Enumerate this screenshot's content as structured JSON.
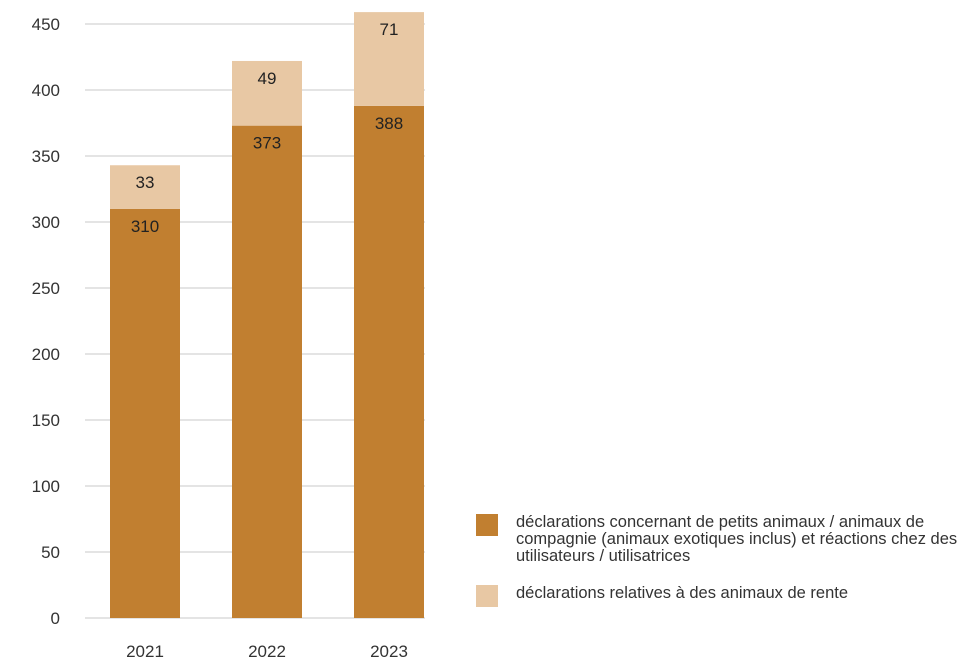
{
  "chart_data": {
    "type": "bar",
    "stacked": true,
    "categories": [
      "2021",
      "2022",
      "2023"
    ],
    "series": [
      {
        "name": "déclarations concernant de petits animaux / animaux de compagnie (animaux exotiques inclus) et réactions chez des utilisateurs / utilisatrices",
        "values": [
          310,
          373,
          388
        ],
        "color": "#c17f30"
      },
      {
        "name": "déclarations relatives à des animaux de rente",
        "values": [
          33,
          49,
          71
        ],
        "color": "#e8c8a4"
      }
    ],
    "title": "",
    "xlabel": "",
    "ylabel": "",
    "ylim": [
      0,
      450
    ],
    "yticks": [
      "0",
      "50",
      "100",
      "150",
      "200",
      "250",
      "300",
      "350",
      "400",
      "450"
    ],
    "grid": true,
    "legend_position": "bottom-right"
  }
}
